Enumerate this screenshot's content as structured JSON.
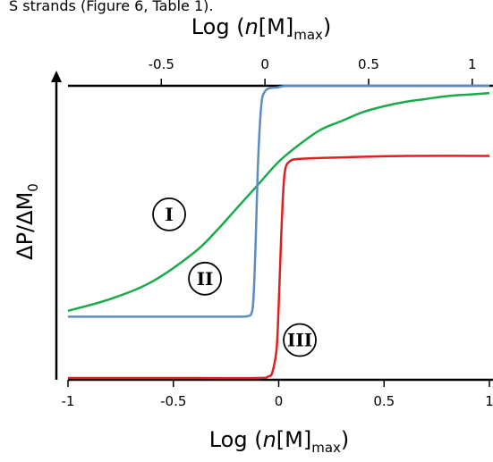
{
  "caption_fragment": "S strands (Figure 6, Table 1).",
  "chart_data": {
    "type": "line",
    "title": "",
    "x_axis_bottom": {
      "label_parts": [
        "Log (",
        "n",
        "[M]",
        "max",
        ")"
      ],
      "range": [
        -1,
        1
      ],
      "ticks": [
        -1,
        -0.5,
        0,
        0.5,
        1
      ],
      "tick_labels": [
        "-1",
        "-0.5",
        "0",
        "0.5",
        "1"
      ]
    },
    "x_axis_top": {
      "label_parts": [
        "Log (",
        "n",
        "[M]",
        "max",
        ")"
      ],
      "range": [
        -0.95,
        1.1
      ],
      "ticks": [
        -0.5,
        0,
        0.5,
        1
      ],
      "tick_labels": [
        "-0.5",
        "0",
        "0.5",
        "1"
      ]
    },
    "y_axis": {
      "label_parts": [
        "ΔP/ΔM",
        "0"
      ],
      "range": [
        0,
        1
      ],
      "ticks_shown": false,
      "arrow": true
    },
    "grid": false,
    "legend": "none",
    "series": [
      {
        "curve": "I",
        "color": "#1aaa4a",
        "x": [
          -1,
          -0.8,
          -0.6,
          -0.4,
          -0.3,
          -0.2,
          -0.1,
          0,
          0.1,
          0.2,
          0.3,
          0.4,
          0.5,
          0.6,
          0.7,
          0.8,
          0.9,
          1
        ],
        "y": [
          0.23,
          0.27,
          0.33,
          0.43,
          0.5,
          0.58,
          0.66,
          0.74,
          0.8,
          0.85,
          0.88,
          0.91,
          0.93,
          0.945,
          0.955,
          0.965,
          0.97,
          0.975
        ]
      },
      {
        "curve": "II",
        "color": "#5b8cc4",
        "x": [
          -1,
          -0.6,
          -0.2,
          -0.15,
          -0.13,
          -0.12,
          -0.11,
          -0.1,
          -0.09,
          -0.08,
          -0.07,
          -0.05,
          0,
          0.05,
          0.3,
          0.6,
          1
        ],
        "y": [
          0.21,
          0.21,
          0.21,
          0.212,
          0.22,
          0.27,
          0.45,
          0.7,
          0.86,
          0.95,
          0.975,
          0.99,
          0.995,
          1.0,
          1.0,
          1.0,
          1.0
        ]
      },
      {
        "curve": "III",
        "color": "#e02020",
        "x": [
          -1,
          -0.4,
          -0.1,
          -0.05,
          -0.03,
          -0.01,
          0,
          0.01,
          0.02,
          0.03,
          0.05,
          0.1,
          0.3,
          0.6,
          1
        ],
        "y": [
          0.0,
          0.0,
          0.0,
          0.005,
          0.02,
          0.1,
          0.25,
          0.45,
          0.62,
          0.71,
          0.74,
          0.75,
          0.755,
          0.76,
          0.76
        ]
      }
    ],
    "annotations": [
      {
        "text": "I",
        "x": -0.52,
        "y": 0.56
      },
      {
        "text": "II",
        "x": -0.35,
        "y": 0.34
      },
      {
        "text": "III",
        "x": 0.1,
        "y": 0.13
      }
    ]
  }
}
